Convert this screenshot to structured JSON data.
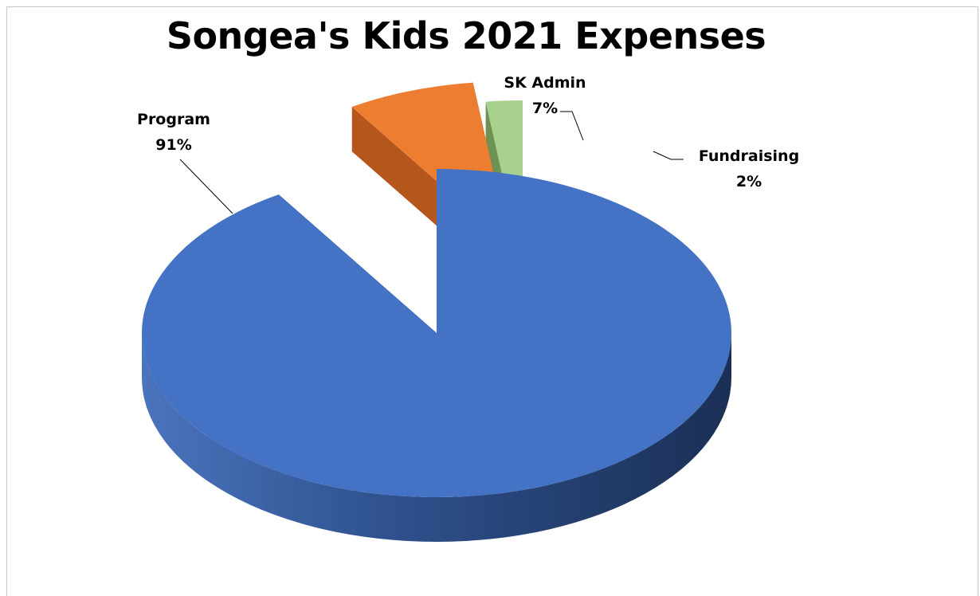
{
  "chart_data": {
    "type": "pie",
    "style": "3d-exploded",
    "title": "Songea's Kids 2021 Expenses",
    "categories": [
      "Program",
      "SK Admin",
      "Fundraising"
    ],
    "values": [
      91,
      7,
      2
    ],
    "value_labels": [
      "91%",
      "7%",
      "2%"
    ],
    "colors": [
      "#4472C4",
      "#ED7D31",
      "#A9D18E"
    ],
    "side_colors": [
      "#2E4F8C",
      "#B5561D",
      "#6E9254"
    ]
  }
}
